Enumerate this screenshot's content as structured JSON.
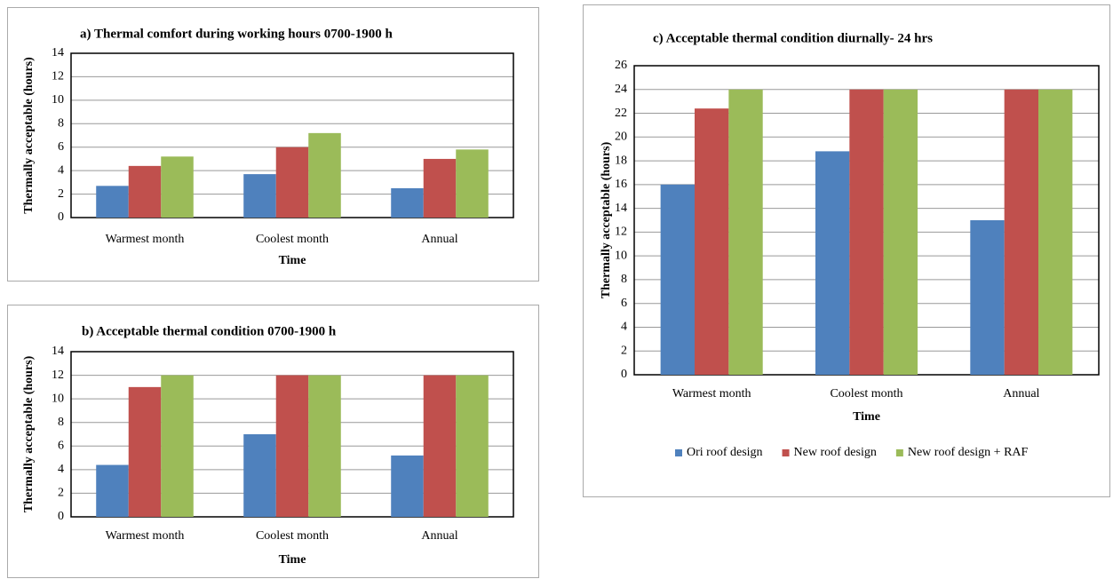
{
  "chart_data": [
    {
      "type": "bar",
      "title": "a) Thermal comfort during working hours 0700-1900 h",
      "x_label": "Time",
      "y_label": "Thermally acceptable (hours)",
      "categories": [
        "Warmest month",
        "Coolest month",
        "Annual"
      ],
      "series": [
        {
          "color": "#4f81bd",
          "values": [
            2.7,
            3.7,
            2.5
          ]
        },
        {
          "color": "#c0504d",
          "values": [
            4.4,
            6.0,
            5.0
          ]
        },
        {
          "color": "#9bbb59",
          "values": [
            5.2,
            7.2,
            5.8
          ]
        }
      ],
      "ylim": [
        0,
        14
      ],
      "yticks": [
        0,
        2,
        4,
        6,
        8,
        10,
        12,
        14
      ],
      "grid": true
    },
    {
      "type": "bar",
      "title": "b) Acceptable thermal condition 0700-1900 h",
      "x_label": "Time",
      "y_label": "Thermally acceptable (hours)",
      "categories": [
        "Warmest month",
        "Coolest month",
        "Annual"
      ],
      "series": [
        {
          "color": "#4f81bd",
          "values": [
            4.4,
            7.0,
            5.2
          ]
        },
        {
          "color": "#c0504d",
          "values": [
            11,
            12,
            12
          ]
        },
        {
          "color": "#9bbb59",
          "values": [
            12,
            12,
            12
          ]
        }
      ],
      "ylim": [
        0,
        14
      ],
      "yticks": [
        0,
        2,
        4,
        6,
        8,
        10,
        12,
        14
      ],
      "grid": true
    },
    {
      "type": "bar",
      "title": "c) Acceptable thermal condition diurnally- 24 hrs",
      "x_label": "Time",
      "y_label": "Thermally acceptable (hours)",
      "categories": [
        "Warmest month",
        "Coolest month",
        "Annual"
      ],
      "series": [
        {
          "name": "Ori roof design",
          "color": "#4f81bd",
          "values": [
            16,
            18.8,
            13
          ]
        },
        {
          "name": "New roof design",
          "color": "#c0504d",
          "values": [
            22.4,
            24,
            24
          ]
        },
        {
          "name": "New roof design + RAF",
          "color": "#9bbb59",
          "values": [
            24,
            24,
            24
          ]
        }
      ],
      "ylim": [
        0,
        26
      ],
      "yticks": [
        0,
        2,
        4,
        6,
        8,
        10,
        12,
        14,
        16,
        18,
        20,
        22,
        24,
        26
      ],
      "grid": true,
      "legend": "bottom"
    }
  ]
}
